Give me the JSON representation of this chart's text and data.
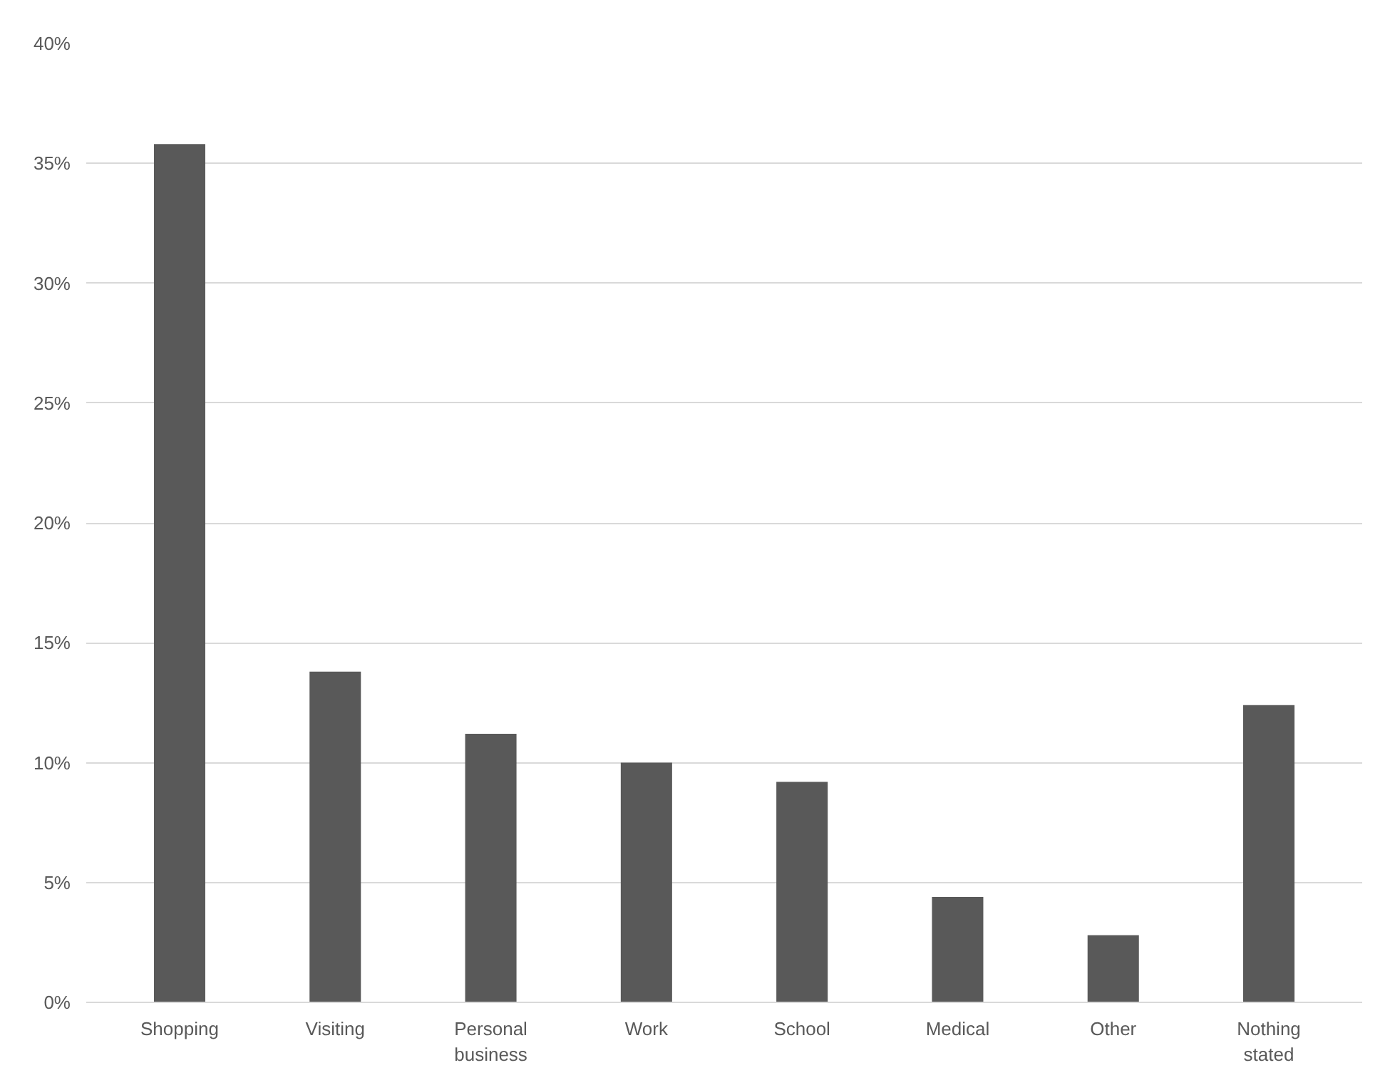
{
  "chart_data": {
    "type": "bar",
    "categories": [
      "Shopping",
      "Visiting",
      "Personal business",
      "Work",
      "School",
      "Medical",
      "Other",
      "Nothing stated"
    ],
    "values": [
      35.8,
      13.8,
      11.2,
      10.0,
      9.2,
      4.4,
      2.8,
      12.4
    ],
    "color": "#595959",
    "ylim": [
      0,
      40
    ],
    "yticks": [
      {
        "value": 0,
        "label": "0%"
      },
      {
        "value": 5,
        "label": "5%"
      },
      {
        "value": 10,
        "label": "10%"
      },
      {
        "value": 15,
        "label": "15%"
      },
      {
        "value": 20,
        "label": "20%"
      },
      {
        "value": 25,
        "label": "25%"
      },
      {
        "value": 30,
        "label": "30%"
      },
      {
        "value": 35,
        "label": "35%"
      },
      {
        "value": 40,
        "label": "40%"
      }
    ],
    "grid": "y"
  }
}
